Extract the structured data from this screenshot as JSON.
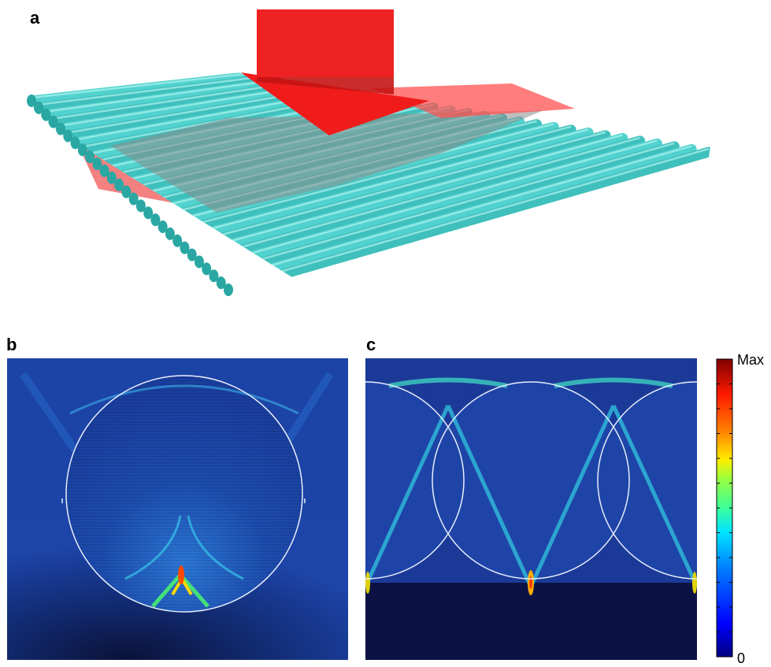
{
  "panels": {
    "a": {
      "label": "a"
    },
    "b": {
      "label": "b"
    },
    "c": {
      "label": "c"
    }
  },
  "colorbar": {
    "max_label": "Max",
    "min_label": "0",
    "colors": [
      "#00007f",
      "#0000ff",
      "#0080ff",
      "#00e5ff",
      "#3cff9a",
      "#9aff3c",
      "#ffee00",
      "#ff8000",
      "#ff1a00",
      "#7f0000"
    ]
  },
  "colors": {
    "fiber": "#40c8c4",
    "beam": "#ff2020",
    "field_bg": "#1a3fa0",
    "field_dark": "#0d1442"
  }
}
